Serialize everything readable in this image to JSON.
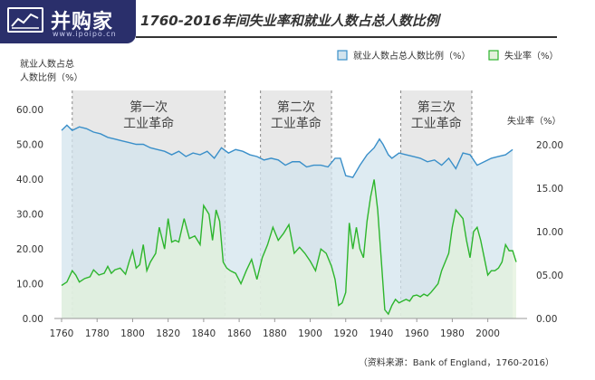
{
  "logo": {
    "text": "并购家",
    "url": "www.ipoipo.cn",
    "icon": "chart-logo-icon"
  },
  "chart_data": {
    "type": "line",
    "title": "1760-2016年间失业率和就业人数占总人数比例",
    "ylabel_left": [
      "就业人数占总",
      "人数比例（%）"
    ],
    "ylabel_right": "失业率（%）",
    "x_ticks": [
      1760,
      1780,
      1800,
      1820,
      1840,
      1860,
      1880,
      1900,
      1920,
      1940,
      1960,
      1980,
      2000
    ],
    "xlim": [
      1760,
      2016
    ],
    "y_left_ticks": [
      "0.00",
      "10.00",
      "20.00",
      "30.00",
      "40.00",
      "50.00",
      "60.00"
    ],
    "y_left_range": [
      0,
      60
    ],
    "y_right_ticks": [
      "0.00",
      "05.00",
      "10.00",
      "15.00",
      "20.00"
    ],
    "y_right_range": [
      0,
      20
    ],
    "legend_position": "top-right",
    "source": "（资料来源：Bank of England，1760-2016）",
    "shaded_periods": [
      {
        "label": [
          "第一次",
          "工业革命"
        ],
        "start": 1766,
        "end": 1852
      },
      {
        "label": [
          "第二次",
          "工业革命"
        ],
        "start": 1872,
        "end": 1912
      },
      {
        "label": [
          "第三次",
          "工业革命"
        ],
        "start": 1951,
        "end": 1991
      }
    ],
    "colors": {
      "employment_line": "#3a8fc9",
      "employment_fill": "#d3e4ee",
      "unemployment_line": "#2db52d",
      "unemployment_fill": "#e3f1dc",
      "shade": "#e8e8e8"
    },
    "series": [
      {
        "name": "就业人数占总人数比例（%）",
        "axis": "left",
        "x": [
          1760,
          1763,
          1766,
          1770,
          1774,
          1778,
          1782,
          1786,
          1790,
          1794,
          1798,
          1802,
          1806,
          1810,
          1814,
          1818,
          1822,
          1826,
          1830,
          1834,
          1838,
          1842,
          1846,
          1850,
          1854,
          1858,
          1862,
          1866,
          1870,
          1874,
          1878,
          1882,
          1886,
          1890,
          1894,
          1898,
          1902,
          1906,
          1910,
          1914,
          1917,
          1920,
          1924,
          1928,
          1932,
          1936,
          1939,
          1941,
          1944,
          1946,
          1950,
          1954,
          1958,
          1962,
          1966,
          1970,
          1974,
          1978,
          1982,
          1986,
          1990,
          1994,
          1998,
          2002,
          2006,
          2010,
          2014
        ],
        "values": [
          54,
          55.5,
          54,
          55,
          54.5,
          53.5,
          53,
          52,
          51.5,
          51,
          50.5,
          50,
          50,
          49,
          48.5,
          48,
          47,
          48,
          46.5,
          47.5,
          47,
          48,
          46,
          49,
          47.5,
          48.5,
          48,
          47,
          46.5,
          45.5,
          46,
          45.5,
          44,
          45,
          45,
          43.5,
          44,
          44,
          43.5,
          46,
          46,
          41,
          40.5,
          44,
          47,
          49,
          51.5,
          50,
          47,
          46,
          47.5,
          47,
          46.5,
          46,
          45,
          45.5,
          44,
          46,
          43,
          47.5,
          47,
          44,
          45,
          46,
          46.5,
          47,
          48.5
        ]
      },
      {
        "name": "失业率（%）",
        "axis": "right",
        "x": [
          1760,
          1763,
          1766,
          1768,
          1770,
          1773,
          1776,
          1778,
          1781,
          1784,
          1786,
          1788,
          1790,
          1793,
          1796,
          1798,
          1800,
          1802,
          1804,
          1806,
          1808,
          1810,
          1813,
          1815,
          1818,
          1820,
          1822,
          1824,
          1826,
          1829,
          1832,
          1835,
          1838,
          1840,
          1843,
          1845,
          1847,
          1849,
          1851,
          1853,
          1855,
          1858,
          1861,
          1864,
          1867,
          1870,
          1873,
          1876,
          1879,
          1882,
          1885,
          1888,
          1891,
          1894,
          1897,
          1900,
          1903,
          1906,
          1909,
          1912,
          1914,
          1916,
          1918,
          1920,
          1922,
          1924,
          1926,
          1928,
          1930,
          1932,
          1934,
          1936,
          1938,
          1940,
          1942,
          1944,
          1946,
          1948,
          1950,
          1952,
          1954,
          1956,
          1958,
          1960,
          1962,
          1964,
          1966,
          1968,
          1970,
          1972,
          1974,
          1976,
          1978,
          1980,
          1982,
          1984,
          1986,
          1988,
          1990,
          1992,
          1994,
          1996,
          1998,
          2000,
          2002,
          2004,
          2006,
          2008,
          2010,
          2012,
          2014,
          2016
        ],
        "values": [
          3.8,
          4.2,
          5.5,
          5.0,
          4.2,
          4.6,
          4.8,
          5.6,
          5.0,
          5.2,
          6.0,
          5.2,
          5.6,
          5.8,
          5.1,
          6.5,
          7.8,
          5.8,
          6.2,
          8.5,
          5.5,
          6.5,
          7.5,
          10.5,
          8.0,
          11.5,
          8.8,
          9.0,
          8.8,
          11.5,
          9.2,
          9.5,
          8.5,
          13.0,
          12.0,
          9.0,
          12.5,
          11.2,
          6.5,
          5.8,
          5.5,
          5.2,
          4.0,
          5.5,
          6.8,
          4.5,
          7.0,
          8.5,
          10.5,
          9.0,
          9.8,
          10.8,
          7.5,
          8.2,
          7.5,
          6.6,
          5.5,
          8.0,
          7.5,
          6.0,
          4.5,
          1.5,
          1.8,
          3.0,
          11.0,
          8.0,
          10.5,
          8.0,
          7.0,
          11.2,
          14.0,
          16.0,
          12.5,
          6.8,
          1.0,
          0.5,
          1.5,
          2.2,
          1.8,
          2.0,
          2.2,
          2.0,
          2.6,
          2.7,
          2.5,
          2.8,
          2.6,
          3.0,
          3.5,
          4.0,
          5.5,
          6.5,
          7.5,
          10.5,
          12.5,
          12.0,
          11.5,
          9.0,
          7.0,
          10.0,
          10.5,
          9.0,
          7.0,
          5.0,
          5.5,
          5.5,
          5.8,
          6.5,
          8.5,
          7.8,
          7.8,
          6.5
        ]
      }
    ]
  }
}
